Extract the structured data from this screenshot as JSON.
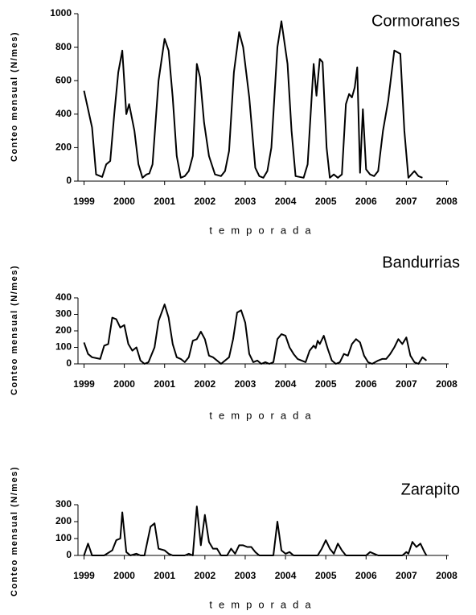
{
  "chart_data": [
    {
      "type": "line",
      "title": "Cormoranes",
      "x_label": "temporada",
      "y_label": "Conteo mensual (N/mes)",
      "xlim": [
        1998.85,
        2008.05
      ],
      "xticks": [
        1999,
        2000,
        2001,
        2002,
        2003,
        2004,
        2005,
        2006,
        2007,
        2008
      ],
      "ylim": [
        0,
        1000
      ],
      "yticks": [
        0,
        200,
        400,
        600,
        800,
        1000
      ],
      "series": [
        {
          "color": "#000000",
          "x": [
            1999.0,
            1999.2,
            1999.3,
            1999.45,
            1999.55,
            1999.65,
            1999.75,
            1999.85,
            1999.95,
            2000.05,
            2000.12,
            2000.25,
            2000.35,
            2000.45,
            2000.55,
            2000.62,
            2000.7,
            2000.85,
            2001.0,
            2001.1,
            2001.2,
            2001.3,
            2001.4,
            2001.5,
            2001.6,
            2001.7,
            2001.8,
            2001.88,
            2001.98,
            2002.1,
            2002.25,
            2002.4,
            2002.5,
            2002.6,
            2002.72,
            2002.85,
            2002.95,
            2003.1,
            2003.25,
            2003.35,
            2003.45,
            2003.55,
            2003.65,
            2003.8,
            2003.9,
            2004.05,
            2004.15,
            2004.25,
            2004.35,
            2004.45,
            2004.55,
            2004.7,
            2004.77,
            2004.85,
            2004.92,
            2005.02,
            2005.1,
            2005.2,
            2005.3,
            2005.4,
            2005.5,
            2005.58,
            2005.65,
            2005.72,
            2005.78,
            2005.85,
            2005.92,
            2006.0,
            2006.1,
            2006.2,
            2006.3,
            2006.42,
            2006.55,
            2006.7,
            2006.85,
            2006.95,
            2007.05,
            2007.2,
            2007.3,
            2007.4
          ],
          "values": [
            540,
            320,
            40,
            25,
            100,
            120,
            400,
            650,
            780,
            400,
            460,
            300,
            100,
            20,
            40,
            45,
            100,
            600,
            850,
            780,
            500,
            150,
            20,
            30,
            60,
            150,
            700,
            620,
            350,
            150,
            40,
            30,
            60,
            180,
            650,
            890,
            800,
            500,
            80,
            30,
            20,
            60,
            200,
            800,
            955,
            700,
            300,
            30,
            25,
            20,
            100,
            700,
            510,
            730,
            710,
            200,
            20,
            40,
            20,
            40,
            460,
            520,
            500,
            560,
            680,
            50,
            430,
            70,
            40,
            30,
            60,
            300,
            480,
            780,
            760,
            300,
            20,
            60,
            30,
            20
          ]
        }
      ]
    },
    {
      "type": "line",
      "title": "Bandurrias",
      "x_label": "temporada",
      "y_label": "Conteo mensual (N/mes)",
      "xlim": [
        1998.85,
        2008.05
      ],
      "xticks": [
        1999,
        2000,
        2001,
        2002,
        2003,
        2004,
        2005,
        2006,
        2007,
        2008
      ],
      "ylim": [
        0,
        400
      ],
      "yticks": [
        0,
        100,
        200,
        300,
        400
      ],
      "series": [
        {
          "color": "#000000",
          "x": [
            1999.0,
            1999.1,
            1999.2,
            1999.4,
            1999.5,
            1999.6,
            1999.7,
            1999.8,
            1999.9,
            2000.0,
            2000.1,
            2000.2,
            2000.3,
            2000.4,
            2000.5,
            2000.6,
            2000.75,
            2000.85,
            2001.0,
            2001.1,
            2001.2,
            2001.3,
            2001.4,
            2001.5,
            2001.6,
            2001.7,
            2001.8,
            2001.9,
            2002.0,
            2002.1,
            2002.2,
            2002.3,
            2002.4,
            2002.5,
            2002.6,
            2002.7,
            2002.8,
            2002.9,
            2003.0,
            2003.1,
            2003.2,
            2003.3,
            2003.4,
            2003.5,
            2003.6,
            2003.7,
            2003.8,
            2003.9,
            2004.0,
            2004.1,
            2004.2,
            2004.3,
            2004.4,
            2004.5,
            2004.6,
            2004.7,
            2004.75,
            2004.8,
            2004.85,
            2004.95,
            2005.05,
            2005.15,
            2005.25,
            2005.35,
            2005.45,
            2005.55,
            2005.65,
            2005.75,
            2005.85,
            2005.95,
            2006.05,
            2006.15,
            2006.3,
            2006.4,
            2006.5,
            2006.6,
            2006.7,
            2006.8,
            2006.9,
            2007.0,
            2007.1,
            2007.2,
            2007.3,
            2007.4,
            2007.5
          ],
          "values": [
            130,
            60,
            40,
            30,
            110,
            120,
            280,
            270,
            220,
            235,
            120,
            80,
            100,
            20,
            0,
            10,
            100,
            260,
            360,
            280,
            120,
            40,
            30,
            10,
            40,
            140,
            150,
            195,
            150,
            50,
            40,
            20,
            0,
            20,
            40,
            150,
            310,
            325,
            250,
            60,
            10,
            20,
            0,
            10,
            0,
            10,
            150,
            180,
            170,
            100,
            60,
            30,
            20,
            10,
            80,
            110,
            95,
            140,
            120,
            170,
            90,
            20,
            0,
            10,
            60,
            50,
            120,
            150,
            130,
            50,
            10,
            0,
            20,
            30,
            30,
            60,
            100,
            150,
            120,
            160,
            50,
            10,
            0,
            40,
            20
          ]
        }
      ]
    },
    {
      "type": "line",
      "title": "Zarapito",
      "x_label": "temporada",
      "y_label": "Conteo mensual (N/mes)",
      "xlim": [
        1998.85,
        2008.05
      ],
      "xticks": [
        1999,
        2000,
        2001,
        2002,
        2003,
        2004,
        2005,
        2006,
        2007,
        2008
      ],
      "ylim": [
        0,
        300
      ],
      "yticks": [
        0,
        100,
        200,
        300
      ],
      "series": [
        {
          "color": "#000000",
          "x": [
            1999.0,
            1999.1,
            1999.2,
            1999.5,
            1999.7,
            1999.8,
            1999.9,
            1999.95,
            2000.05,
            2000.15,
            2000.3,
            2000.4,
            2000.5,
            2000.65,
            2000.75,
            2000.85,
            2001.0,
            2001.1,
            2001.2,
            2001.5,
            2001.6,
            2001.7,
            2001.8,
            2001.9,
            2002.0,
            2002.1,
            2002.2,
            2002.3,
            2002.4,
            2002.55,
            2002.65,
            2002.75,
            2002.85,
            2002.95,
            2003.05,
            2003.15,
            2003.25,
            2003.35,
            2003.7,
            2003.8,
            2003.9,
            2004.0,
            2004.1,
            2004.2,
            2004.8,
            2004.9,
            2005.0,
            2005.1,
            2005.2,
            2005.3,
            2005.4,
            2005.5,
            2006.0,
            2006.1,
            2006.2,
            2006.3,
            2006.9,
            2007.0,
            2007.05,
            2007.15,
            2007.25,
            2007.35,
            2007.45,
            2007.5
          ],
          "values": [
            0,
            70,
            0,
            0,
            30,
            90,
            100,
            255,
            20,
            0,
            10,
            0,
            0,
            170,
            190,
            40,
            30,
            10,
            0,
            0,
            10,
            0,
            290,
            60,
            240,
            80,
            40,
            40,
            0,
            0,
            40,
            10,
            60,
            60,
            50,
            50,
            20,
            0,
            0,
            200,
            30,
            10,
            20,
            0,
            0,
            40,
            90,
            40,
            10,
            70,
            30,
            0,
            0,
            20,
            10,
            0,
            0,
            20,
            10,
            80,
            50,
            70,
            20,
            0
          ]
        }
      ]
    }
  ]
}
